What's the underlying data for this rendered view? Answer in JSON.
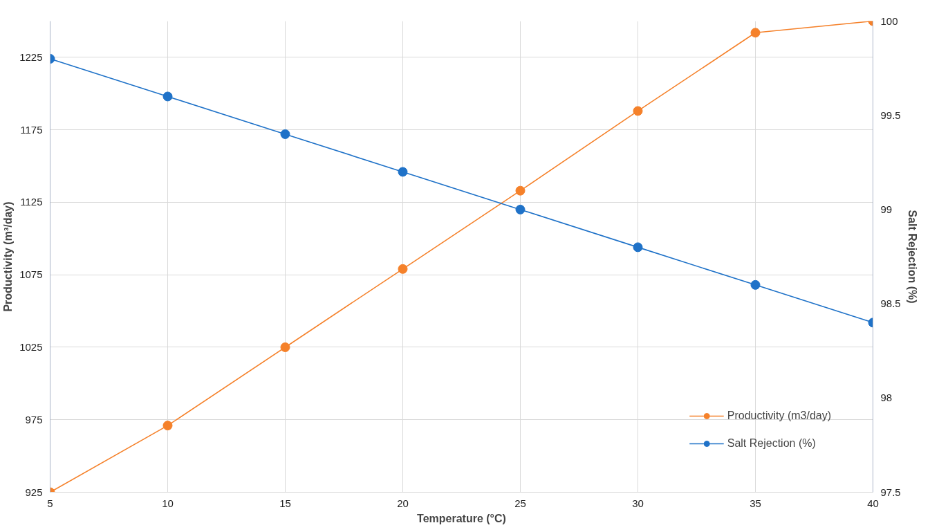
{
  "chart_data": {
    "type": "line",
    "xlabel": "Temperature (°C)",
    "ylabel": "Productivity (m³/day)",
    "y2label": "Salt Rejection (%)",
    "x": [
      5,
      10,
      15,
      20,
      25,
      30,
      35,
      40
    ],
    "series": [
      {
        "name": "Productivity (m3/day)",
        "color": "#f5812a",
        "values": [
          925,
          971,
          1025,
          1079,
          1133,
          1188,
          1242,
          1250
        ]
      },
      {
        "name": "Salt Rejection (%)",
        "color": "#1f72c8",
        "axis": "y2",
        "values": [
          99.8,
          99.6,
          99.4,
          99.2,
          99.0,
          98.8,
          98.6,
          98.4
        ]
      }
    ],
    "xlim": [
      5,
      40
    ],
    "xticks": [
      5,
      10,
      15,
      20,
      25,
      30,
      35,
      40
    ],
    "ylim": [
      925,
      1250
    ],
    "yticks": [
      925,
      975,
      1025,
      1075,
      1125,
      1175,
      1225
    ],
    "y2lim": [
      97.5,
      100
    ],
    "y2ticks": [
      97.5,
      98,
      98.5,
      99,
      99.5,
      100
    ],
    "grid": true,
    "legend": "bottom right",
    "marker": "circle",
    "line_style": "solid"
  }
}
